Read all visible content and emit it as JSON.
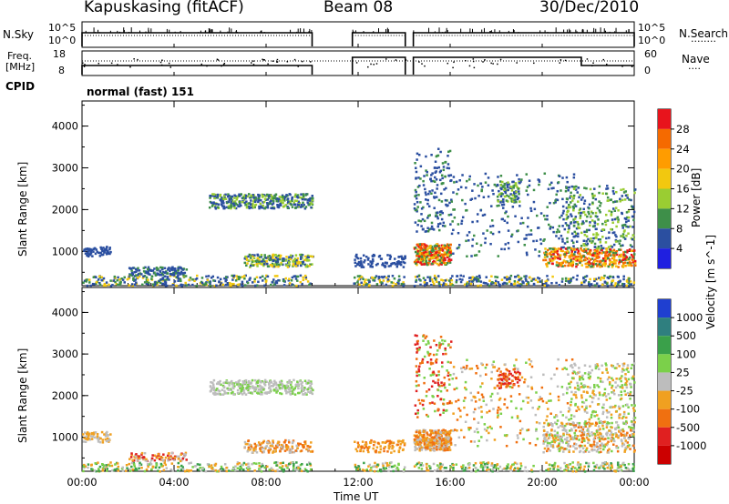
{
  "header": {
    "station": "Kapuskasing (fitACF)",
    "beam": "Beam 08",
    "date": "30/Dec/2010"
  },
  "strips": {
    "nsky_label": "N.Sky",
    "nsky_ticks": [
      "10^5",
      "10^0"
    ],
    "nsky_right_ticks": [
      "10^5",
      "10^0"
    ],
    "nsearch_label": "N.Search",
    "nsearch_marker": "........",
    "freq_label_1": "Freq.",
    "freq_label_2": "[MHz]",
    "freq_ticks": [
      "18",
      "8"
    ],
    "nave_ticks": [
      "60",
      "0"
    ],
    "nave_label": "Nave",
    "nave_marker": "....",
    "cpid_label": "CPID",
    "cpid_value": "normal (fast) 151"
  },
  "chart_data": [
    {
      "type": "heatmap",
      "name": "power",
      "ylabel": "Slant Range [km]",
      "yticks": [
        "4000",
        "3000",
        "2000",
        "1000"
      ],
      "ylim": [
        180,
        4600
      ],
      "colorbar_label": "Power [dB]",
      "colorbar_ticks": [
        "28",
        "24",
        "20",
        "16",
        "12",
        "8",
        "4"
      ],
      "colorbar_colors": [
        "#e8141c",
        "#f56a00",
        "#ff9c00",
        "#f2c80f",
        "#9acd32",
        "#3e8f49",
        "#2b4fa0",
        "#1f1fe0"
      ]
    },
    {
      "type": "heatmap",
      "name": "velocity",
      "ylabel": "Slant Range [km]",
      "yticks": [
        "4000",
        "3000",
        "2000",
        "1000"
      ],
      "ylim": [
        180,
        4600
      ],
      "colorbar_label": "Velocity [m s^-1]",
      "colorbar_ticks": [
        "1000",
        "500",
        "100",
        "25",
        "-25",
        "-100",
        "-500",
        "-1000"
      ],
      "colorbar_colors": [
        "#1f3fd0",
        "#2f7f7f",
        "#3aa04a",
        "#7bd04a",
        "#bdbdbd",
        "#f0a020",
        "#f07010",
        "#e02020",
        "#cc0000"
      ]
    }
  ],
  "xaxis": {
    "label": "Time UT",
    "ticks": [
      "00:00",
      "04:00",
      "08:00",
      "12:00",
      "16:00",
      "20:00",
      "00:00"
    ]
  },
  "data_gaps_hours": [
    [
      10.0,
      11.75
    ],
    [
      14.05,
      14.4
    ]
  ],
  "colors": {
    "gray_scatter": "#bdbdbd",
    "power_blue": "#2b4fa0"
  }
}
